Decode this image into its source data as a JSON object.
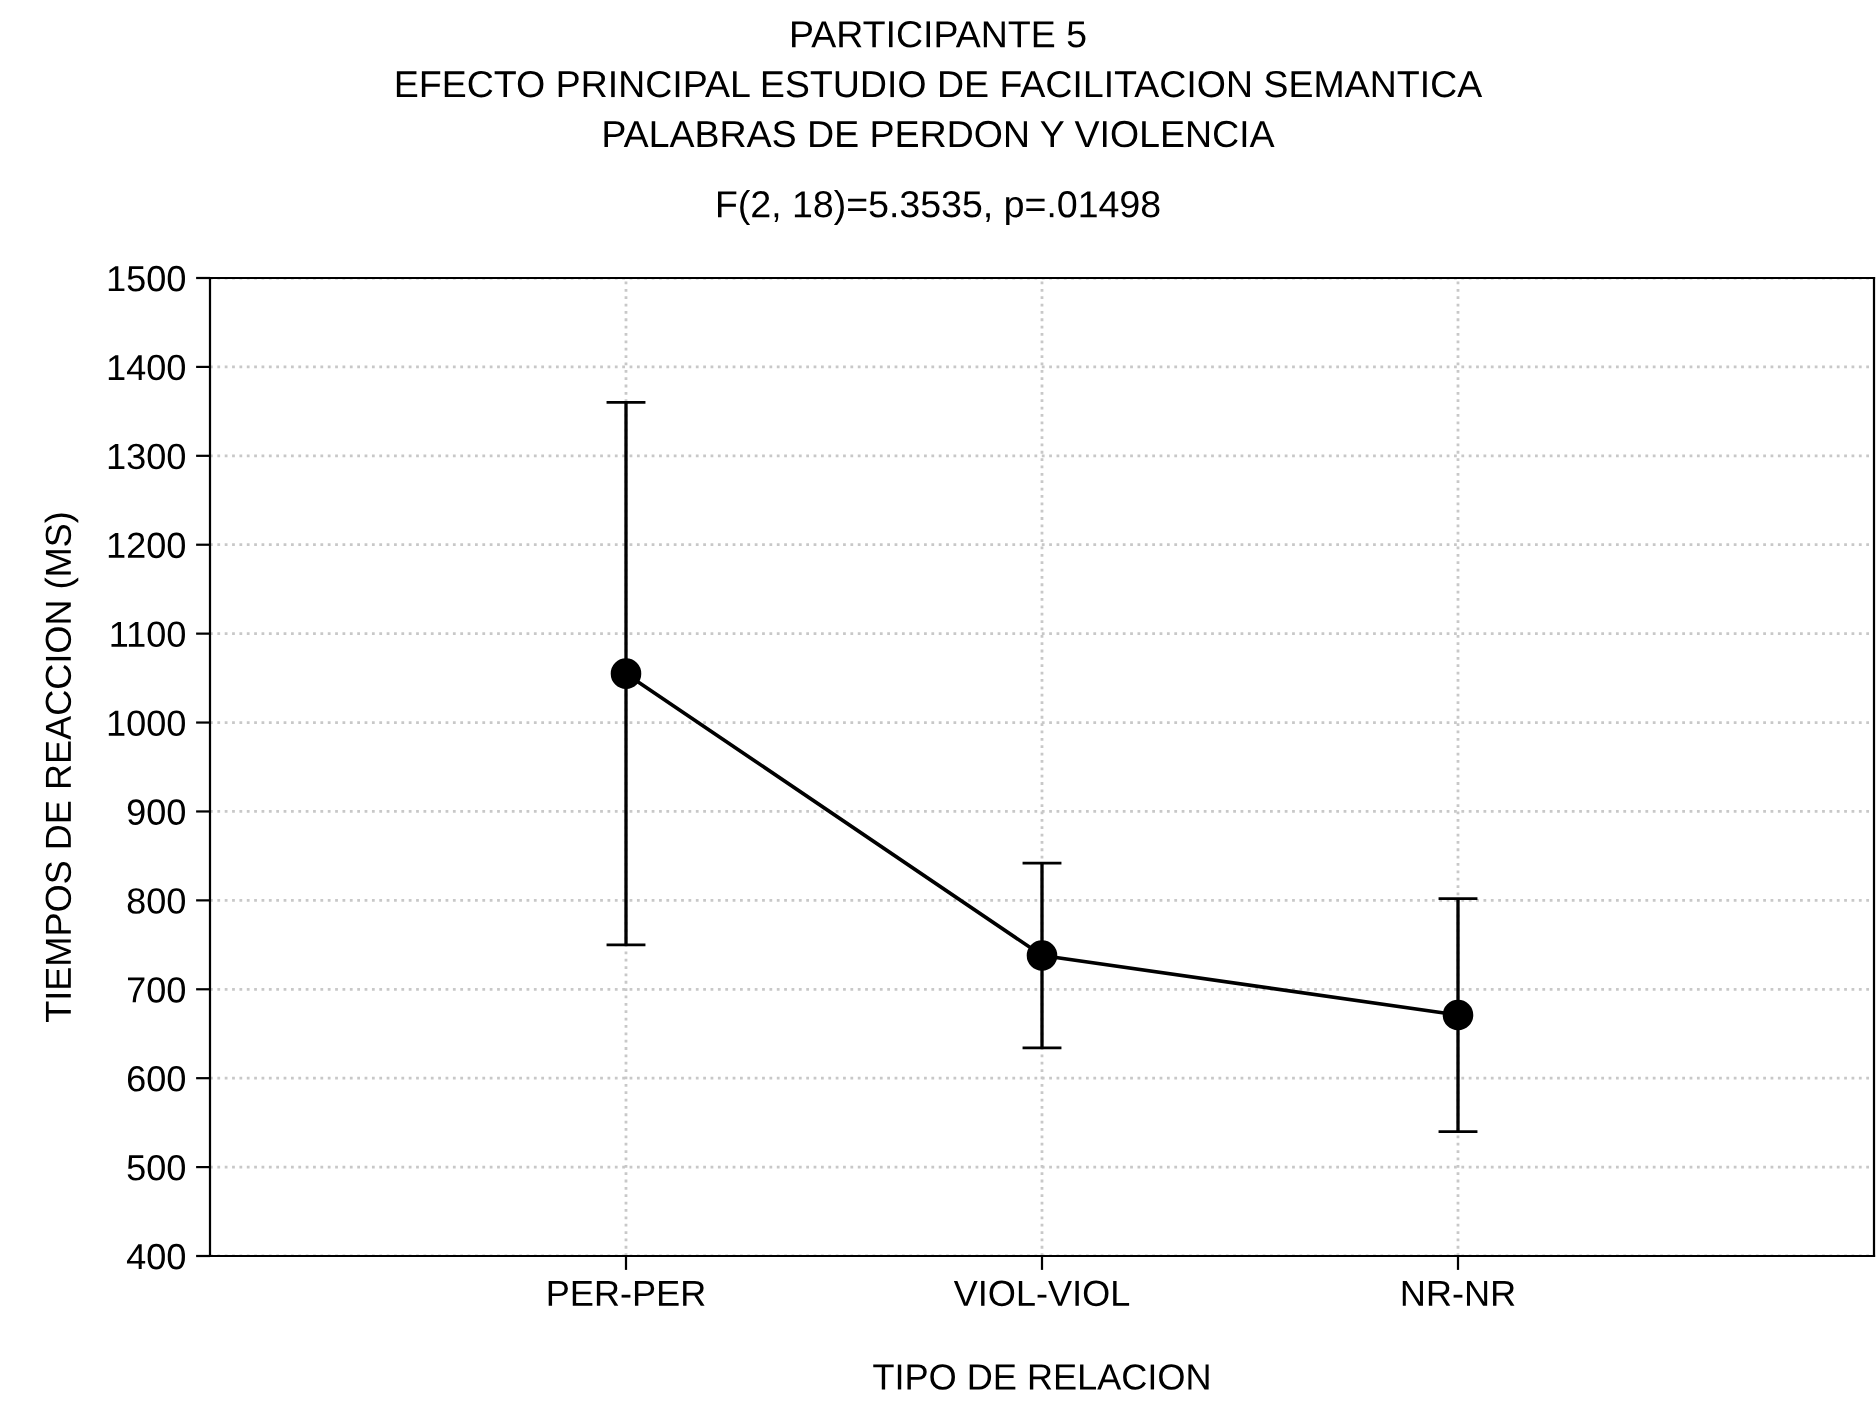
{
  "chart_data": {
    "type": "line",
    "title": "PARTICIPANTE 5\nEFECTO PRINCIPAL ESTUDIO DE FACILITACION SEMANTICA\nPALABRAS DE PERDON Y VIOLENCIA",
    "subtitle": "F(2, 18)=5.3535, p=.01498",
    "xlabel": "TIPO DE RELACION",
    "ylabel": "TIEMPOS DE REACCION (MS)",
    "categories": [
      "PER-PER",
      "VIOL-VIOL",
      "NR-NR"
    ],
    "series": [
      {
        "color": "#000000",
        "values": [
          1055,
          738,
          671
        ],
        "errors": [
          305,
          104,
          131
        ]
      }
    ],
    "ylim": [
      400,
      1500
    ],
    "yticks": [
      400,
      500,
      600,
      700,
      800,
      900,
      1000,
      1100,
      1200,
      1300,
      1400,
      1500
    ],
    "grid": true,
    "marker": "circle",
    "line_style": "solid"
  }
}
